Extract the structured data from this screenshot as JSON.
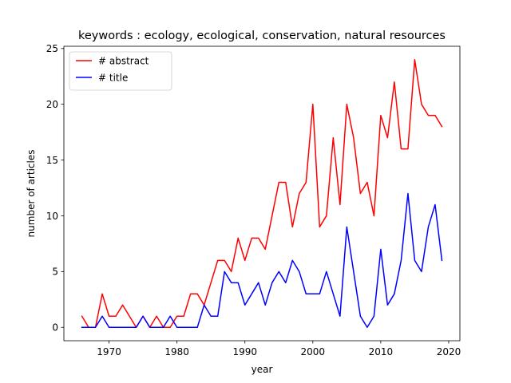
{
  "chart_data": {
    "type": "line",
    "title": "keywords : ecology, ecological, conservation, natural resources",
    "xlabel": "year",
    "ylabel": "number of articles",
    "xlim": [
      1963.35,
      2021.65
    ],
    "ylim": [
      -1.2,
      25.2
    ],
    "xticks": [
      1970,
      1980,
      1990,
      2000,
      2010,
      2020
    ],
    "yticks": [
      0,
      5,
      10,
      15,
      20,
      25
    ],
    "grid": false,
    "legend_location": "top-left",
    "x": [
      1966,
      1967,
      1968,
      1969,
      1970,
      1971,
      1972,
      1973,
      1974,
      1975,
      1976,
      1977,
      1978,
      1979,
      1980,
      1981,
      1982,
      1983,
      1984,
      1985,
      1986,
      1987,
      1988,
      1989,
      1990,
      1991,
      1992,
      1993,
      1994,
      1995,
      1996,
      1997,
      1998,
      1999,
      2000,
      2001,
      2002,
      2003,
      2004,
      2005,
      2006,
      2007,
      2008,
      2009,
      2010,
      2011,
      2012,
      2013,
      2014,
      2015,
      2016,
      2017,
      2018,
      2019
    ],
    "series": [
      {
        "name": "# abstract",
        "color": "#ff0000",
        "values": [
          1,
          0,
          0,
          3,
          1,
          1,
          2,
          1,
          0,
          1,
          0,
          1,
          0,
          0,
          1,
          1,
          3,
          3,
          2,
          4,
          6,
          6,
          5,
          8,
          6,
          8,
          8,
          7,
          10,
          13,
          13,
          9,
          12,
          13,
          20,
          9,
          10,
          17,
          11,
          20,
          17,
          12,
          13,
          10,
          19,
          17,
          22,
          16,
          16,
          24,
          20,
          19,
          19,
          18
        ]
      },
      {
        "name": "# title",
        "color": "#0000ff",
        "values": [
          0,
          0,
          0,
          1,
          0,
          0,
          0,
          0,
          0,
          1,
          0,
          0,
          0,
          1,
          0,
          0,
          0,
          0,
          2,
          1,
          1,
          5,
          4,
          4,
          2,
          3,
          4,
          2,
          4,
          5,
          4,
          6,
          5,
          3,
          3,
          3,
          5,
          3,
          1,
          9,
          5,
          1,
          0,
          1,
          7,
          2,
          3,
          6,
          12,
          6,
          5,
          9,
          11,
          6
        ]
      }
    ]
  }
}
